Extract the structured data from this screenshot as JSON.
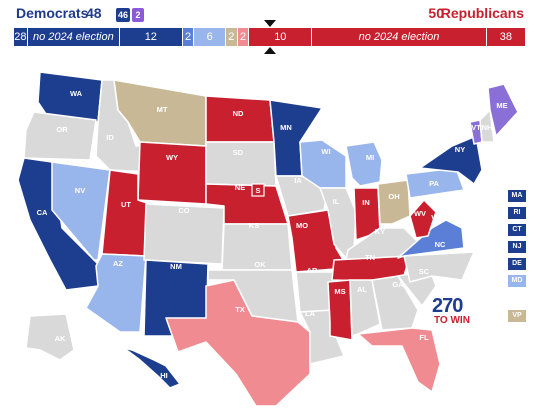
{
  "header": {
    "dem_name": "Democrats",
    "dem_count": "48",
    "badge_dem": "46",
    "badge_ind": "2",
    "rep_count": "50",
    "rep_name": "Republicans"
  },
  "bar": [
    {
      "id": "dem-no",
      "label": "28",
      "color": "#1d3d8f",
      "width": 14
    },
    {
      "id": "dem-noe",
      "label": "no 2024 election",
      "color": "#1d3d8f",
      "width": 94,
      "italic": true
    },
    {
      "id": "dem-safe",
      "label": "12",
      "color": "#1d3d8f",
      "width": 64
    },
    {
      "id": "ind-safe",
      "label": "2",
      "color": "#5b7fd6",
      "width": 12
    },
    {
      "id": "dem-lean",
      "label": "6",
      "color": "#99b6ec",
      "width": 32
    },
    {
      "id": "toss",
      "label": "2",
      "color": "#c9b896",
      "width": 12
    },
    {
      "id": "rep-lean",
      "label": "2",
      "color": "#ef8b91",
      "width": 12
    },
    {
      "id": "rep-safe",
      "label": "10",
      "color": "#c8202f",
      "width": 64
    },
    {
      "id": "rep-noe",
      "label": "no 2024 election",
      "color": "#c8202f",
      "width": 178,
      "italic": true
    },
    {
      "id": "rep-no",
      "label": "38",
      "color": "#c8202f",
      "width": 40
    }
  ],
  "colors": {
    "dem_safe": "#1d3d8f",
    "dem_lean": "#99b6ec",
    "ind": "#5b7fd6",
    "rep_safe": "#c8202f",
    "rep_lean": "#ef8b91",
    "toss": "#c9b896",
    "none": "#d9d9d9",
    "maine_ind": "#8a6fd6"
  },
  "states": [
    {
      "id": "WA",
      "label": "WA",
      "fill": "dem_safe"
    },
    {
      "id": "OR",
      "label": "OR",
      "fill": "none"
    },
    {
      "id": "CA",
      "label": "CA",
      "fill": "dem_safe"
    },
    {
      "id": "NV",
      "label": "NV",
      "fill": "dem_lean"
    },
    {
      "id": "ID",
      "label": "ID",
      "fill": "none"
    },
    {
      "id": "MT",
      "label": "MT",
      "fill": "toss"
    },
    {
      "id": "WY",
      "label": "WY",
      "fill": "rep_safe"
    },
    {
      "id": "UT",
      "label": "UT",
      "fill": "rep_safe"
    },
    {
      "id": "AZ",
      "label": "AZ",
      "fill": "dem_lean"
    },
    {
      "id": "CO",
      "label": "CO",
      "fill": "none"
    },
    {
      "id": "NM",
      "label": "NM",
      "fill": "dem_safe"
    },
    {
      "id": "ND",
      "label": "ND",
      "fill": "rep_safe"
    },
    {
      "id": "SD",
      "label": "SD",
      "fill": "none"
    },
    {
      "id": "NE",
      "label": "NE",
      "fill": "rep_safe"
    },
    {
      "id": "KS",
      "label": "KS",
      "fill": "none"
    },
    {
      "id": "OK",
      "label": "OK",
      "fill": "none"
    },
    {
      "id": "TX",
      "label": "TX",
      "fill": "rep_lean"
    },
    {
      "id": "MN",
      "label": "MN",
      "fill": "dem_safe"
    },
    {
      "id": "IA",
      "label": "IA",
      "fill": "none"
    },
    {
      "id": "MO",
      "label": "MO",
      "fill": "rep_safe"
    },
    {
      "id": "AR",
      "label": "AR",
      "fill": "none"
    },
    {
      "id": "LA",
      "label": "LA",
      "fill": "none"
    },
    {
      "id": "WI",
      "label": "WI",
      "fill": "dem_lean"
    },
    {
      "id": "IL",
      "label": "IL",
      "fill": "none"
    },
    {
      "id": "MI",
      "label": "MI",
      "fill": "dem_lean"
    },
    {
      "id": "IN",
      "label": "IN",
      "fill": "rep_safe"
    },
    {
      "id": "OH",
      "label": "OH",
      "fill": "toss"
    },
    {
      "id": "KY",
      "label": "KY",
      "fill": "none"
    },
    {
      "id": "TN",
      "label": "TN",
      "fill": "rep_safe"
    },
    {
      "id": "MS",
      "label": "MS",
      "fill": "rep_safe"
    },
    {
      "id": "AL",
      "label": "AL",
      "fill": "none"
    },
    {
      "id": "GA",
      "label": "GA",
      "fill": "none"
    },
    {
      "id": "FL",
      "label": "FL",
      "fill": "rep_lean"
    },
    {
      "id": "SC",
      "label": "SC",
      "fill": "none"
    },
    {
      "id": "NC",
      "label": "NC",
      "fill": "none"
    },
    {
      "id": "VA",
      "label": "VA",
      "fill": "ind"
    },
    {
      "id": "WV",
      "label": "WV",
      "fill": "rep_safe"
    },
    {
      "id": "PA",
      "label": "PA",
      "fill": "dem_lean"
    },
    {
      "id": "NY",
      "label": "NY",
      "fill": "dem_safe"
    },
    {
      "id": "VT",
      "label": "VT",
      "fill": "maine_ind"
    },
    {
      "id": "NH",
      "label": "NH",
      "fill": "none"
    },
    {
      "id": "ME",
      "label": "ME",
      "fill": "maine_ind"
    },
    {
      "id": "AK",
      "label": "AK",
      "fill": "none"
    },
    {
      "id": "HI",
      "label": "HI",
      "fill": "dem_safe"
    },
    {
      "id": "NE-S",
      "label": "S",
      "fill": "rep_safe"
    }
  ],
  "side_boxes": [
    {
      "label": "MA",
      "fill": "dem_safe"
    },
    {
      "label": "RI",
      "fill": "dem_safe"
    },
    {
      "label": "CT",
      "fill": "dem_safe"
    },
    {
      "label": "NJ",
      "fill": "dem_safe"
    },
    {
      "label": "DE",
      "fill": "dem_safe"
    },
    {
      "label": "MD",
      "fill": "dem_lean"
    }
  ],
  "vp_box": {
    "label": "VP",
    "fill": "toss"
  },
  "logo": {
    "top": "270",
    "bottom": "TO WIN"
  }
}
